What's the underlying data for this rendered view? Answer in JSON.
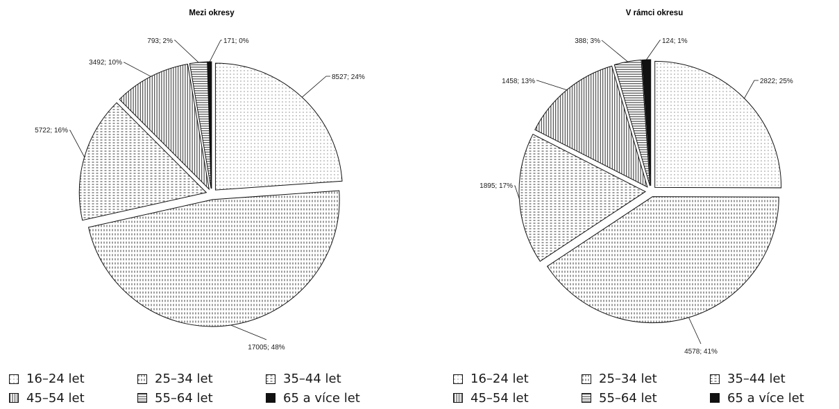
{
  "chart_data": [
    {
      "type": "pie",
      "title": "Mezi okresy",
      "categories": [
        "16–24 let",
        "25–34 let",
        "35–44 let",
        "45–54 let",
        "55–64 let",
        "65 a více let"
      ],
      "values": [
        8527,
        17005,
        5722,
        3492,
        793,
        171
      ],
      "data_labels": [
        "8527; 24%",
        "17005; 48%",
        "5722; 16%",
        "3492; 10%",
        "793; 2%",
        "171; 0%"
      ],
      "exploded": true,
      "legend_position": "bottom"
    },
    {
      "type": "pie",
      "title": "V rámci okresu",
      "categories": [
        "16–24 let",
        "25–34 let",
        "35–44 let",
        "45–54 let",
        "55–64 let",
        "65 a více let"
      ],
      "values": [
        2822,
        4578,
        1895,
        1458,
        388,
        124
      ],
      "data_labels": [
        "2822; 25%",
        "4578; 41%",
        "1895; 17%",
        "1458; 13%",
        "388; 3%",
        "124; 1%"
      ],
      "exploded": true,
      "legend_position": "bottom"
    }
  ],
  "patterns": [
    "fine-dots",
    "vertical-dashes",
    "horizontal-dashes",
    "vertical-lines",
    "horizontal-lines",
    "solid"
  ],
  "colors": {
    "ink": "#1a1a1a",
    "background": "#ffffff"
  }
}
